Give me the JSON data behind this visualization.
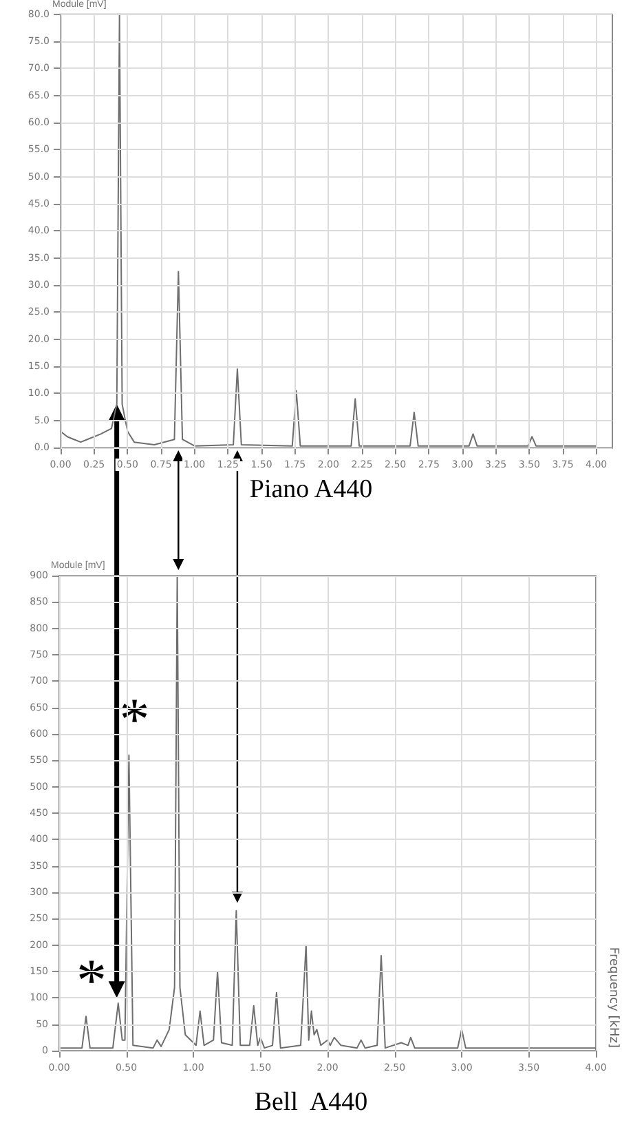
{
  "chart_data": [
    {
      "type": "line",
      "title": "Piano A440",
      "ylabel": "Module [mV]",
      "xlim": [
        0,
        4.12
      ],
      "ylim": [
        0,
        80
      ],
      "xticks": [
        {
          "value": 0,
          "label": "0.00"
        },
        {
          "value": 0.25,
          "label": "0.25"
        },
        {
          "value": 0.5,
          "label": "0.50"
        },
        {
          "value": 0.75,
          "label": "0.75"
        },
        {
          "value": 1,
          "label": "1.00"
        },
        {
          "value": 1.25,
          "label": "1.25"
        },
        {
          "value": 1.5,
          "label": "1.50"
        },
        {
          "value": 1.75,
          "label": "1.75"
        },
        {
          "value": 2,
          "label": "2.00"
        },
        {
          "value": 2.25,
          "label": "2.25"
        },
        {
          "value": 2.5,
          "label": "2.50"
        },
        {
          "value": 2.75,
          "label": "2.75"
        },
        {
          "value": 3,
          "label": "3.00"
        },
        {
          "value": 3.25,
          "label": "3.25"
        },
        {
          "value": 3.5,
          "label": "3.50"
        },
        {
          "value": 3.75,
          "label": "3.75"
        },
        {
          "value": 4,
          "label": "4.00"
        }
      ],
      "yticks": [
        {
          "value": 0,
          "label": "0.0"
        },
        {
          "value": 5,
          "label": "5.0"
        },
        {
          "value": 10,
          "label": "10.0"
        },
        {
          "value": 15,
          "label": "15.0"
        },
        {
          "value": 20,
          "label": "20.0"
        },
        {
          "value": 25,
          "label": "25.0"
        },
        {
          "value": 30,
          "label": "30.0"
        },
        {
          "value": 35,
          "label": "35.0"
        },
        {
          "value": 40,
          "label": "40.0"
        },
        {
          "value": 45,
          "label": "45.0"
        },
        {
          "value": 50,
          "label": "50.0"
        },
        {
          "value": 55,
          "label": "55.0"
        },
        {
          "value": 60,
          "label": "60.0"
        },
        {
          "value": 65,
          "label": "65.0"
        },
        {
          "value": 70,
          "label": "70.0"
        },
        {
          "value": 75,
          "label": "75.0"
        },
        {
          "value": 80,
          "label": "80.0"
        }
      ],
      "grid": true,
      "marker": "none",
      "series": [
        {
          "color": "#6e6e6e",
          "x": [
            0,
            0.05,
            0.1,
            0.15,
            0.2,
            0.3,
            0.38,
            0.42,
            0.44,
            0.46,
            0.5,
            0.55,
            0.7,
            0.85,
            0.88,
            0.91,
            1.0,
            1.29,
            1.32,
            1.35,
            1.73,
            1.76,
            1.79,
            2.17,
            2.2,
            2.23,
            2.61,
            2.64,
            2.67,
            3.05,
            3.08,
            3.11,
            3.49,
            3.52,
            3.55,
            4.0
          ],
          "values": [
            3,
            2,
            1.5,
            1,
            1.5,
            2.5,
            3.5,
            8,
            80,
            8,
            3,
            1,
            0.5,
            1.5,
            32.5,
            1.5,
            0.3,
            0.5,
            14.5,
            0.5,
            0.3,
            10.5,
            0.3,
            0.3,
            9,
            0.3,
            0.3,
            6.5,
            0.3,
            0.3,
            2.5,
            0.3,
            0.3,
            2,
            0.3,
            0.3
          ]
        }
      ]
    },
    {
      "type": "line",
      "title": "Bell  A440",
      "ylabel": "Module [mV]",
      "xlim": [
        0,
        4
      ],
      "ylim": [
        0,
        900
      ],
      "xticks": [
        {
          "value": 0,
          "label": "0.00"
        },
        {
          "value": 0.5,
          "label": "0.50"
        },
        {
          "value": 1,
          "label": "1.00"
        },
        {
          "value": 1.5,
          "label": "1.50"
        },
        {
          "value": 2,
          "label": "2.00"
        },
        {
          "value": 2.5,
          "label": "2.50"
        },
        {
          "value": 3,
          "label": "3.00"
        },
        {
          "value": 3.5,
          "label": "3.50"
        },
        {
          "value": 4,
          "label": "4.00"
        }
      ],
      "yticks": [
        0,
        50,
        100,
        150,
        200,
        250,
        300,
        350,
        400,
        450,
        500,
        550,
        600,
        650,
        700,
        750,
        800,
        850,
        900
      ],
      "grid": true,
      "marker": "none",
      "annotations": [
        {
          "text": "*",
          "x": 0.2,
          "y": 65
        },
        {
          "text": "*",
          "x": 0.52,
          "y": 560
        },
        "Frequency [kHz]"
      ],
      "series": [
        {
          "color": "#6e6e6e",
          "x": [
            0,
            0.17,
            0.2,
            0.23,
            0.4,
            0.44,
            0.47,
            0.49,
            0.52,
            0.55,
            0.7,
            0.73,
            0.76,
            0.82,
            0.86,
            0.88,
            0.9,
            0.94,
            1.02,
            1.05,
            1.08,
            1.15,
            1.18,
            1.21,
            1.29,
            1.32,
            1.35,
            1.42,
            1.45,
            1.48,
            1.5,
            1.53,
            1.59,
            1.62,
            1.65,
            1.8,
            1.84,
            1.86,
            1.88,
            1.9,
            1.92,
            1.95,
            2.0,
            2.02,
            2.05,
            2.1,
            2.22,
            2.25,
            2.28,
            2.37,
            2.4,
            2.43,
            2.55,
            2.6,
            2.62,
            2.65,
            2.97,
            3.0,
            3.03,
            3.5,
            4.0
          ],
          "values": [
            5,
            5,
            65,
            5,
            5,
            90,
            20,
            20,
            560,
            10,
            5,
            20,
            8,
            40,
            120,
            900,
            120,
            30,
            10,
            75,
            10,
            20,
            150,
            15,
            10,
            265,
            10,
            10,
            85,
            10,
            25,
            5,
            10,
            110,
            5,
            10,
            200,
            20,
            75,
            30,
            40,
            10,
            20,
            10,
            25,
            10,
            5,
            20,
            5,
            10,
            180,
            5,
            15,
            10,
            25,
            5,
            5,
            40,
            5,
            5,
            5
          ]
        }
      ]
    }
  ]
}
